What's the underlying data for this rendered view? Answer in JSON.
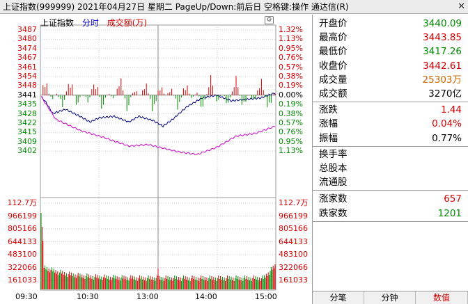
{
  "titlebar": {
    "text": "上证指数(999999)  2021年04月27日  星期二  PageUp/Down:前后日  空格键:操作  通达信(R)",
    "close_icon": "close-icon"
  },
  "chart_header": {
    "name": "上证指数",
    "mode": "分时",
    "volume_label": "成交额(万)",
    "settings_icon": "gear-icon"
  },
  "price_axis": {
    "left": [
      "3487",
      "3480",
      "3474",
      "3467",
      "3461",
      "3454",
      "3448",
      "3441",
      "3435",
      "3428",
      "3422",
      "3415",
      "3409",
      "3402"
    ],
    "right": [
      "1.32%",
      "1.13%",
      "0.95%",
      "0.76%",
      "0.57%",
      "0.38%",
      "0.19%",
      "0.00%",
      "0.19%",
      "0.38%",
      "0.57%",
      "0.76%",
      "0.95%",
      "1.13%"
    ]
  },
  "volume_axis": {
    "left": [
      "112.7万",
      "966199",
      "805166",
      "644133",
      "483100",
      "322066",
      "161033"
    ],
    "right": [
      "112.7万",
      "966199",
      "805166",
      "644133",
      "483100",
      "322066",
      "161033"
    ]
  },
  "time_axis": [
    "09:30",
    "10:30",
    "13:00",
    "14:00",
    "15:00"
  ],
  "quote_panel": {
    "rows1": [
      {
        "label": "开盘价",
        "value": "3440.09",
        "color": "#008a00"
      },
      {
        "label": "最高价",
        "value": "3443.85",
        "color": "#d40000"
      },
      {
        "label": "最低价",
        "value": "3417.26",
        "color": "#008a00"
      },
      {
        "label": "收盘价",
        "value": "3442.61",
        "color": "#d40000"
      },
      {
        "label": "成交量",
        "value": "25303万",
        "color": "#cc6600"
      },
      {
        "label": "成交额",
        "value": "3270亿",
        "color": "#000000"
      }
    ],
    "rows2": [
      {
        "label": "涨跌",
        "value": "1.44",
        "color": "#d40000"
      },
      {
        "label": "涨幅",
        "value": "0.04%",
        "color": "#d40000"
      },
      {
        "label": "振幅",
        "value": "0.77%",
        "color": "#000000"
      }
    ],
    "rows3": [
      {
        "label": "换手率",
        "value": ""
      },
      {
        "label": "总股本",
        "value": ""
      },
      {
        "label": "流通股",
        "value": ""
      }
    ],
    "rows4": [
      {
        "label": "涨家数",
        "value": "657",
        "color": "#d40000"
      },
      {
        "label": "跌家数",
        "value": "1201",
        "color": "#008a00"
      }
    ]
  },
  "tabs": [
    {
      "label": "分笔",
      "active": false
    },
    {
      "label": "分钟",
      "active": false
    },
    {
      "label": "数值",
      "active": true
    }
  ],
  "colors": {
    "up": "#d40000",
    "down": "#008a00",
    "price_line": "#000080",
    "avg_line": "#cc00cc",
    "grid": "#cccccc"
  }
}
